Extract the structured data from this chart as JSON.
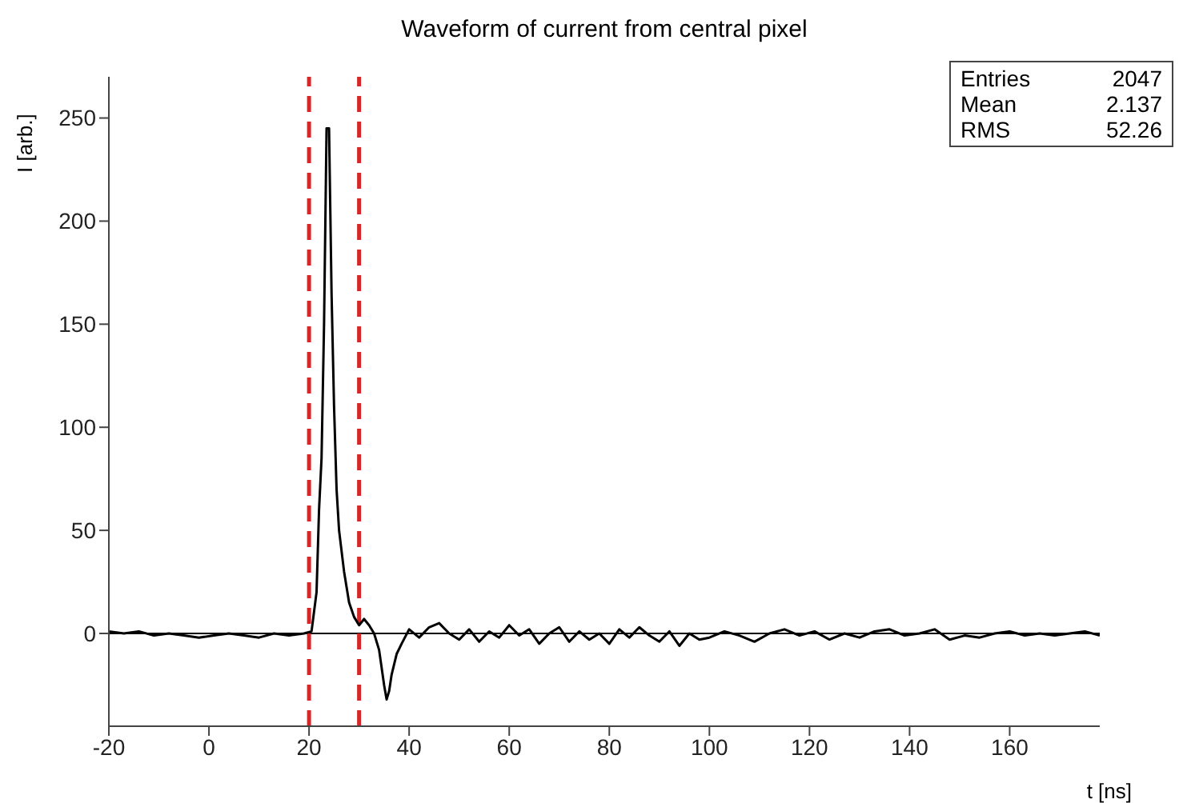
{
  "chart_data": {
    "type": "line",
    "title": "Waveform of current from central pixel",
    "xlabel": "t [ns]",
    "ylabel": "I [arb.]",
    "x": [
      -20,
      -17,
      -14,
      -11,
      -8,
      -5,
      -2,
      1,
      4,
      7,
      10,
      13,
      16,
      19,
      20.5,
      21.5,
      22,
      22.5,
      23,
      23.5,
      24,
      24.5,
      25,
      25.5,
      26,
      27,
      28,
      29,
      30,
      31,
      32,
      33,
      34,
      35,
      35.5,
      36,
      36.5,
      37.5,
      38.5,
      40,
      42,
      44,
      46,
      48,
      50,
      52,
      54,
      56,
      58,
      60,
      62,
      64,
      66,
      68,
      70,
      72,
      74,
      76,
      78,
      80,
      82,
      84,
      86,
      88,
      90,
      92,
      94,
      96,
      98,
      100,
      103,
      106,
      109,
      112,
      115,
      118,
      121,
      124,
      127,
      130,
      133,
      136,
      139,
      142,
      145,
      148,
      151,
      154,
      157,
      160,
      163,
      166,
      169,
      172,
      175,
      178
    ],
    "series": [
      {
        "color": "#000000",
        "values": [
          1,
          0,
          1,
          -1,
          0,
          -1,
          -2,
          -1,
          0,
          -1,
          -2,
          0,
          -1,
          0,
          1,
          20,
          60,
          85,
          150,
          245,
          245,
          165,
          110,
          70,
          50,
          30,
          15,
          8,
          4,
          7,
          4,
          0,
          -8,
          -25,
          -32,
          -28,
          -20,
          -10,
          -5,
          2,
          -2,
          3,
          5,
          0,
          -3,
          2,
          -4,
          1,
          -2,
          4,
          -1,
          2,
          -5,
          0,
          3,
          -4,
          1,
          -3,
          0,
          -5,
          2,
          -2,
          3,
          -1,
          -4,
          1,
          -6,
          0,
          -3,
          -2,
          1,
          -1,
          -4,
          0,
          2,
          -1,
          1,
          -3,
          0,
          -2,
          1,
          2,
          -1,
          0,
          2,
          -3,
          -1,
          -2,
          0,
          1,
          -1,
          0,
          -1,
          0,
          1,
          -1
        ]
      }
    ],
    "xlim": [
      -20,
      178
    ],
    "ylim": [
      -45,
      270
    ],
    "xticks": [
      -20,
      0,
      20,
      40,
      60,
      80,
      100,
      120,
      140,
      160
    ],
    "yticks": [
      0,
      50,
      100,
      150,
      200,
      250
    ],
    "ref_lines": [
      {
        "axis": "y",
        "value": 0,
        "color": "#000000",
        "line_style": "solid"
      },
      {
        "axis": "x",
        "value": 20,
        "color": "#d62728",
        "line_style": "dashed"
      },
      {
        "axis": "x",
        "value": 30,
        "color": "#d62728",
        "line_style": "dashed"
      }
    ],
    "annotations": [
      "Entries",
      "2047",
      "Mean",
      "2.137",
      "RMS",
      "52.26"
    ],
    "grid": false,
    "legend": false,
    "marker": "none",
    "line_style": "solid"
  }
}
